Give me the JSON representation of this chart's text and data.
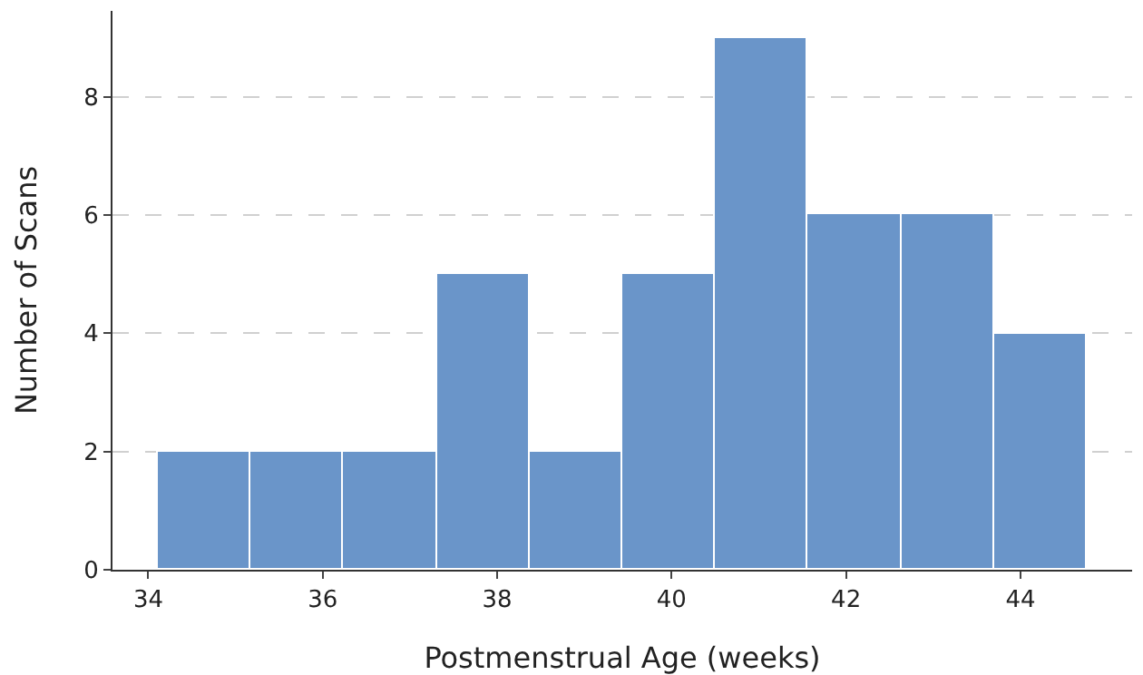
{
  "chart_data": {
    "type": "histogram",
    "xlabel": "Postmenstrual Age (weeks)",
    "ylabel": "Number of Scans",
    "bins": [
      34.12,
      35.18,
      36.24,
      37.31,
      38.37,
      39.44,
      40.5,
      41.56,
      42.63,
      43.69,
      44.75
    ],
    "values": [
      2,
      2,
      2,
      5,
      2,
      5,
      9,
      6,
      6,
      4
    ],
    "color": "#6a95c9",
    "xlim": [
      33.59,
      45.28
    ],
    "xticks": [
      34,
      36,
      38,
      40,
      42,
      44
    ],
    "ylim": [
      0,
      9.45
    ],
    "yticks": [
      0,
      2,
      4,
      6,
      8
    ],
    "grid": "y"
  }
}
